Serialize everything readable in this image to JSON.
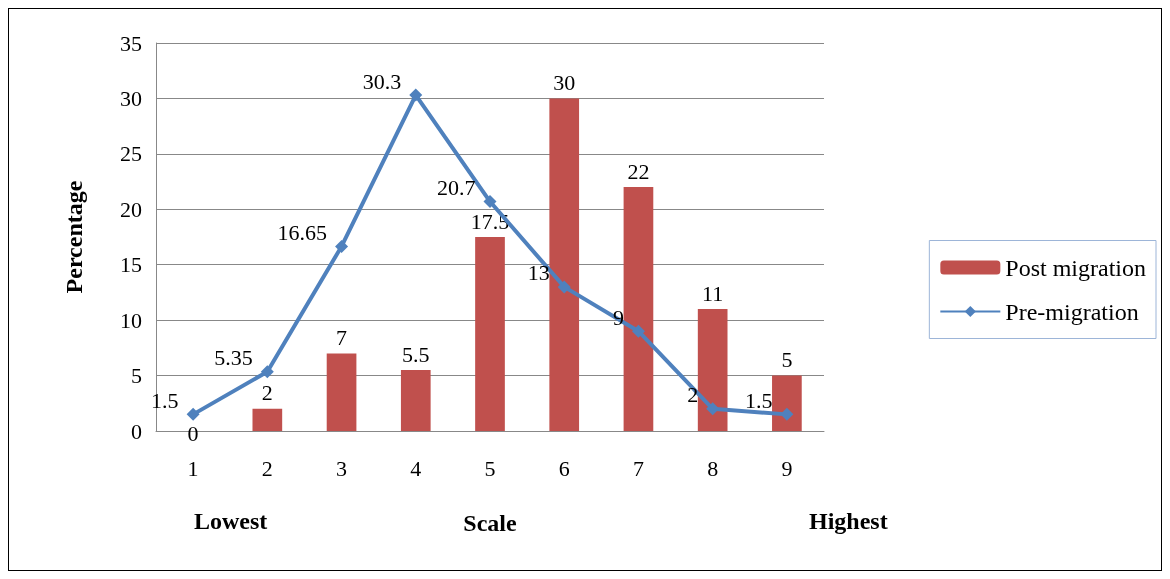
{
  "chart_data": {
    "type": "bar",
    "categories": [
      "1",
      "2",
      "3",
      "4",
      "5",
      "6",
      "7",
      "8",
      "9"
    ],
    "series": [
      {
        "name": "Post migration",
        "color": "#c0504d",
        "values": [
          0,
          2,
          7,
          5.5,
          17.5,
          30,
          22,
          11,
          5
        ]
      },
      {
        "name": "Pre-migration",
        "type": "line",
        "color": "#4f81bd",
        "values": [
          1.5,
          5.35,
          16.65,
          30.3,
          20.7,
          13,
          9,
          2,
          1.5
        ]
      }
    ],
    "xlabel": "Scale",
    "ylabel": "Percentage",
    "annotations": [
      "Lowest",
      "Highest"
    ],
    "ylim": [
      0,
      35
    ],
    "yticks": [
      0,
      5,
      10,
      15,
      20,
      25,
      30,
      35
    ],
    "grid": "y",
    "legend": "right",
    "marker": "diamond",
    "data_labels": true
  }
}
